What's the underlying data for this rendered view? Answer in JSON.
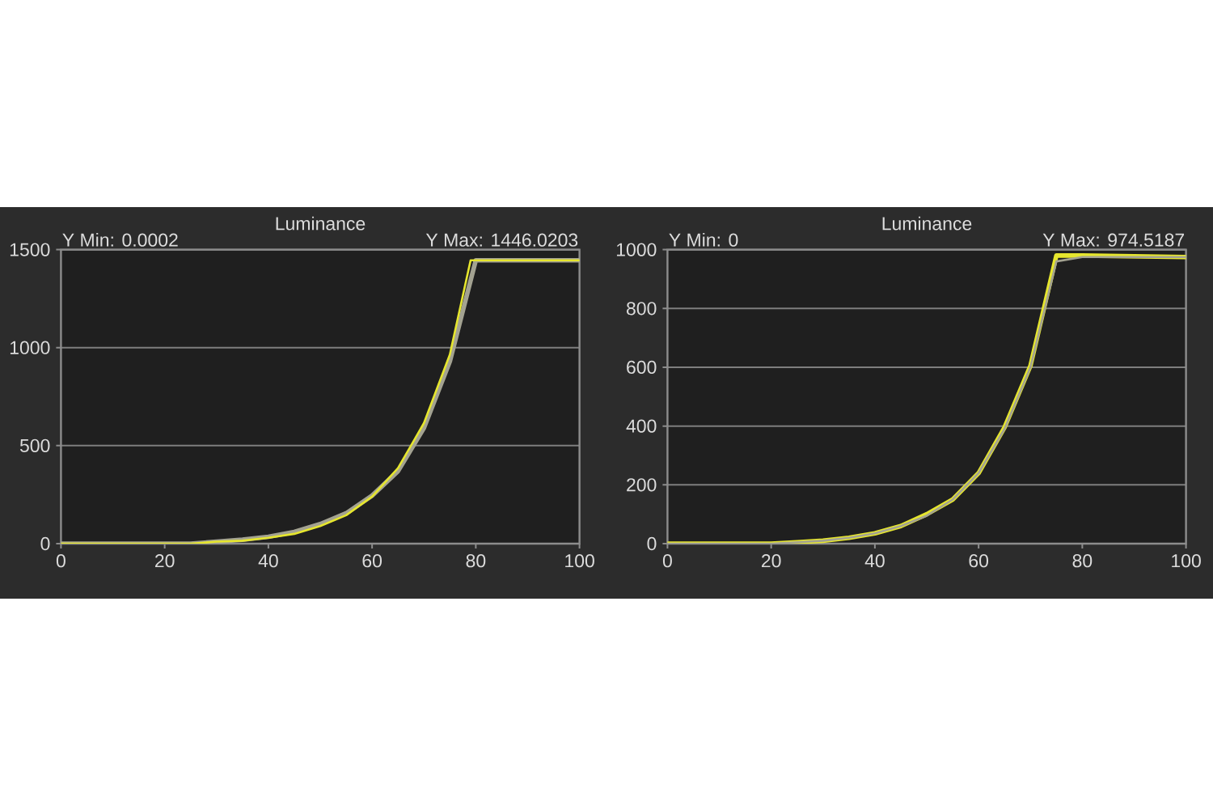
{
  "chart_data": [
    {
      "type": "line",
      "title": "Luminance",
      "annotations": [
        "Y Min: 0.0002",
        "Y Max: 1446.0203"
      ],
      "series": [
        {
          "color": "#a3a291",
          "x": [
            0,
            5,
            10,
            15,
            20,
            25,
            30,
            35,
            40,
            45,
            50,
            55,
            60,
            65,
            70,
            75,
            80,
            100
          ],
          "values": [
            0,
            0,
            0,
            0,
            0,
            0,
            10,
            20,
            35,
            60,
            100,
            155,
            245,
            370,
            590,
            930,
            1446,
            1446
          ]
        },
        {
          "color": "#e6e62e",
          "x": [
            0,
            5,
            10,
            15,
            20,
            25,
            30,
            35,
            40,
            45,
            50,
            55,
            60,
            65,
            70,
            75,
            79,
            100
          ],
          "values": [
            0,
            0,
            0,
            0,
            0,
            0,
            10,
            15,
            30,
            50,
            90,
            145,
            240,
            385,
            615,
            965,
            1446,
            1446
          ]
        }
      ],
      "xlim": [
        0,
        100
      ],
      "ylim": [
        0,
        1500
      ],
      "xticks": [
        0,
        20,
        40,
        60,
        80,
        100
      ],
      "yticks": [
        0,
        500,
        1000,
        1500
      ],
      "grid": "y",
      "marker": "none"
    },
    {
      "type": "line",
      "title": "Luminance",
      "annotations": [
        "Y Min: 0",
        "Y Max: 974.5187"
      ],
      "series": [
        {
          "color": "#e6e62e",
          "x": [
            0,
            5,
            10,
            15,
            20,
            25,
            30,
            35,
            40,
            45,
            50,
            55,
            60,
            65,
            70,
            75,
            80,
            100
          ],
          "values": [
            0,
            0,
            0,
            0,
            0,
            5,
            10,
            20,
            35,
            60,
            100,
            150,
            240,
            395,
            605,
            980,
            980,
            975
          ]
        },
        {
          "color": "#a3a291",
          "x": [
            0,
            5,
            10,
            15,
            20,
            25,
            30,
            35,
            40,
            45,
            50,
            55,
            60,
            65,
            70,
            75,
            80,
            100
          ],
          "values": [
            0,
            0,
            0,
            0,
            0,
            5,
            10,
            20,
            35,
            60,
            95,
            150,
            240,
            390,
            600,
            960,
            975,
            975
          ]
        }
      ],
      "xlim": [
        0,
        100
      ],
      "ylim": [
        0,
        1000
      ],
      "xticks": [
        0,
        20,
        40,
        60,
        80,
        100
      ],
      "yticks": [
        0,
        200,
        400,
        600,
        800,
        1000
      ],
      "grid": "y",
      "marker": "none"
    }
  ]
}
